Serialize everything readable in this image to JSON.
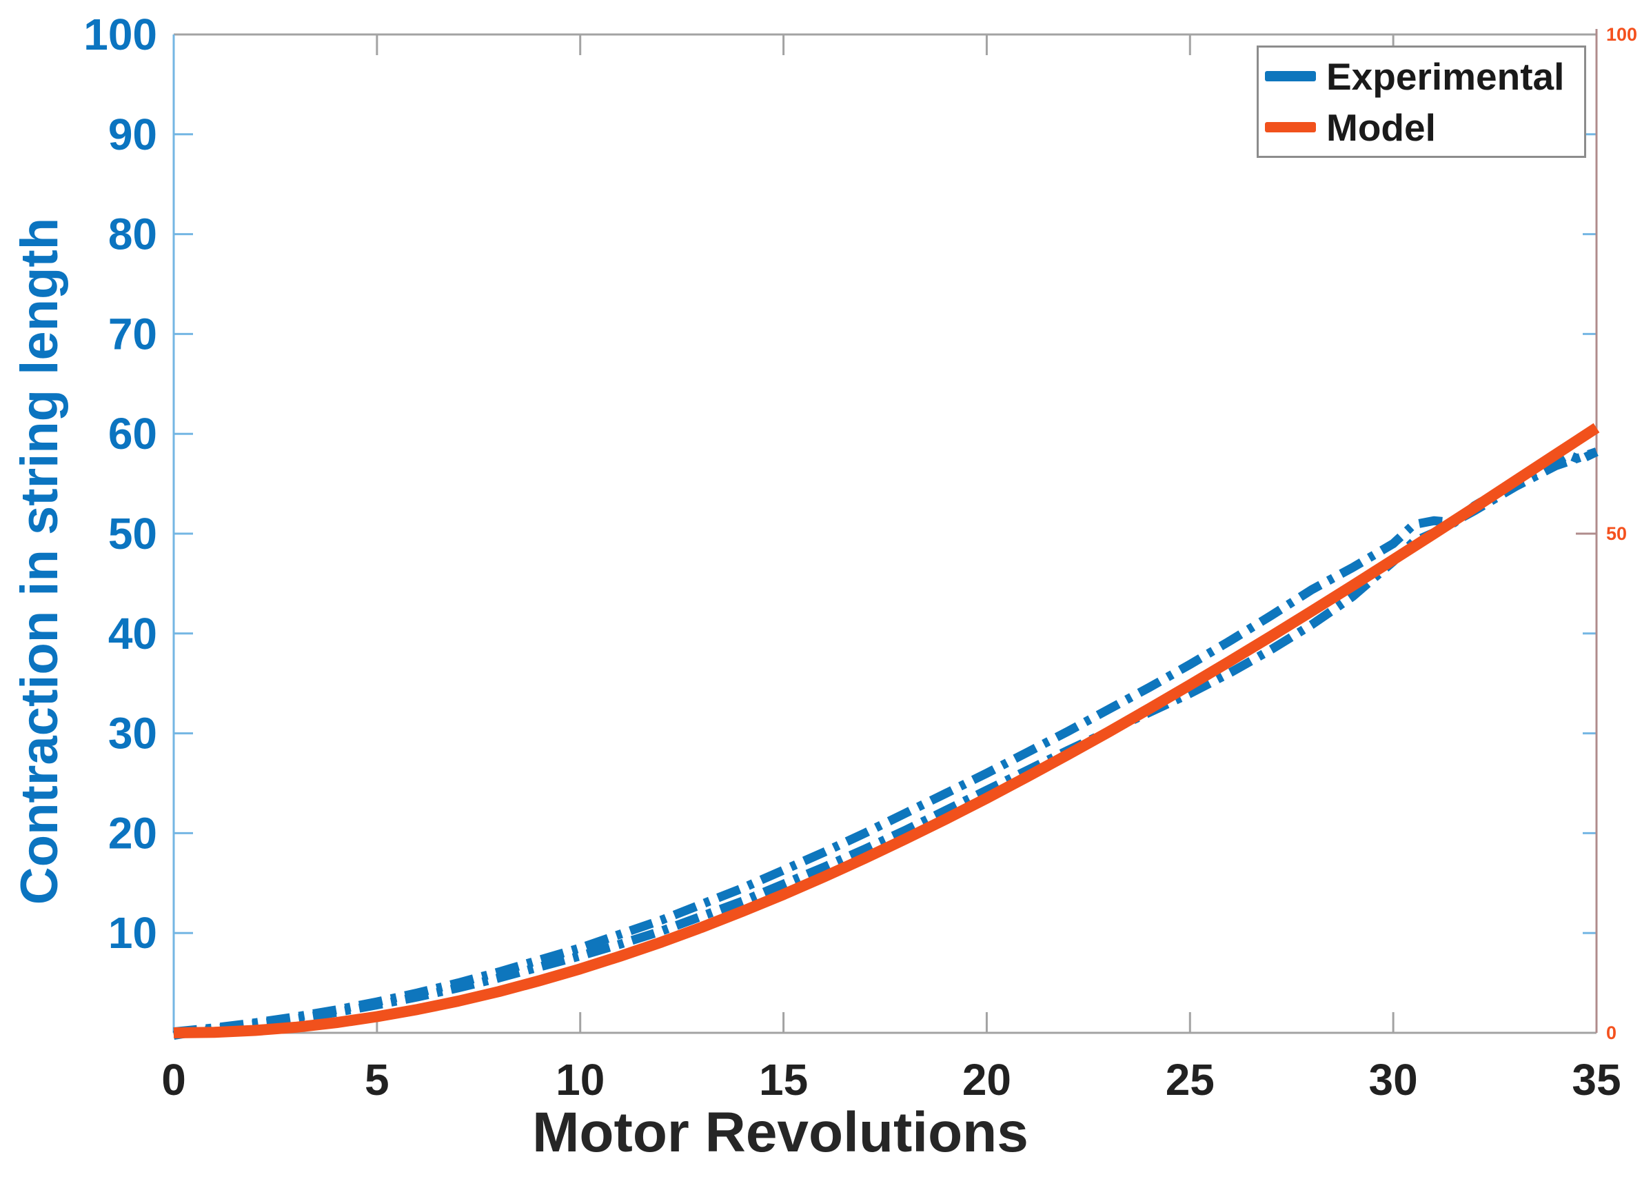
{
  "figure": {
    "background": "#FFFFFF"
  },
  "legend": {
    "position": "top-right",
    "items": [
      {
        "label": "Experimental",
        "color": "#0E76BD",
        "style": "dash-dot"
      },
      {
        "label": "Model",
        "color": "#F1511C",
        "style": "solid"
      }
    ]
  },
  "colors": {
    "experimental": "#0E76BD",
    "model": "#F1511C",
    "left_axis": "#74B6E3",
    "left_tick_labels": "#0B74C0",
    "right_axis": "#B08C8C",
    "right_tick_labels": "#F4511E",
    "frame": "#A3A3A3",
    "x_tick_labels": "#212121",
    "x_axis_label": "#262626",
    "legend_border": "#8C8C8C",
    "background": "#FFFFFF"
  },
  "chart_data": {
    "type": "line",
    "title": "",
    "xlabel": "Motor Revolutions",
    "ylabel": "Contraction in string length",
    "xlim": [
      0,
      35
    ],
    "ylim_left": [
      0,
      100
    ],
    "ylim_right": [
      0,
      100
    ],
    "x_ticks": [
      0,
      5,
      10,
      15,
      20,
      25,
      30,
      35
    ],
    "y_ticks_left": [
      10,
      20,
      30,
      40,
      50,
      60,
      70,
      80,
      90,
      100
    ],
    "y_ticks_right": [
      0,
      50,
      100
    ],
    "grid": false,
    "legend_position": "top-right",
    "series": [
      {
        "name": "Experimental (upper trace)",
        "legend": "Experimental",
        "axis": "left",
        "style": "dash-dot",
        "color": "#0E76BD",
        "width": 13,
        "points": [
          [
            0,
            0.1
          ],
          [
            1,
            0.5
          ],
          [
            2,
            1.0
          ],
          [
            3,
            1.6
          ],
          [
            4,
            2.3
          ],
          [
            5,
            3.1
          ],
          [
            6,
            4.0
          ],
          [
            7,
            5.0
          ],
          [
            8,
            6.1
          ],
          [
            9,
            7.3
          ],
          [
            10,
            8.5
          ],
          [
            11,
            9.9
          ],
          [
            12,
            11.3
          ],
          [
            13,
            12.9
          ],
          [
            14,
            14.5
          ],
          [
            15,
            16.3
          ],
          [
            16,
            18.1
          ],
          [
            17,
            20.0
          ],
          [
            18,
            22.0
          ],
          [
            19,
            24.0
          ],
          [
            20,
            26.0
          ],
          [
            21,
            28.1
          ],
          [
            22,
            30.2
          ],
          [
            23,
            32.4
          ],
          [
            24,
            34.6
          ],
          [
            25,
            36.9
          ],
          [
            26,
            39.3
          ],
          [
            27,
            41.8
          ],
          [
            28,
            44.4
          ],
          [
            29,
            46.6
          ],
          [
            30,
            49.0
          ],
          [
            30.5,
            50.9
          ],
          [
            31,
            51.3
          ],
          [
            31.5,
            51.1
          ],
          [
            32,
            52.8
          ],
          [
            33,
            55.2
          ],
          [
            33.5,
            56.2
          ],
          [
            34,
            57.2
          ],
          [
            34.3,
            57.9
          ],
          [
            34.6,
            57.4
          ],
          [
            35,
            58.2
          ]
        ]
      },
      {
        "name": "Experimental (lower trace)",
        "legend": "Experimental",
        "axis": "left",
        "style": "dash-dot",
        "color": "#0E76BD",
        "width": 13,
        "points": [
          [
            0,
            -0.25
          ],
          [
            1,
            0.4
          ],
          [
            2,
            0.85
          ],
          [
            3,
            1.4
          ],
          [
            4,
            2.05
          ],
          [
            5,
            2.8
          ],
          [
            6,
            3.6
          ],
          [
            7,
            4.5
          ],
          [
            8,
            5.5
          ],
          [
            9,
            6.6
          ],
          [
            10,
            7.7
          ],
          [
            11,
            8.9
          ],
          [
            12,
            10.2
          ],
          [
            13,
            11.7
          ],
          [
            14,
            13.2
          ],
          [
            15,
            14.9
          ],
          [
            16,
            16.6
          ],
          [
            17,
            18.4
          ],
          [
            18,
            20.3
          ],
          [
            19,
            22.3
          ],
          [
            20,
            24.3
          ],
          [
            21,
            26.3
          ],
          [
            22,
            28.3
          ],
          [
            23,
            30.2
          ],
          [
            24,
            32.1
          ],
          [
            25,
            34.0
          ],
          [
            26,
            36.1
          ],
          [
            27,
            38.4
          ],
          [
            28,
            40.9
          ],
          [
            29,
            43.7
          ],
          [
            30,
            47.2
          ],
          [
            30.5,
            49.2
          ],
          [
            31,
            50.1
          ],
          [
            32,
            52.3
          ],
          [
            33,
            54.7
          ],
          [
            34,
            56.8
          ],
          [
            35,
            58.2
          ]
        ]
      },
      {
        "name": "Model",
        "legend": "Model",
        "axis": "right",
        "style": "solid",
        "color": "#F1511C",
        "width": 16,
        "points": [
          [
            0,
            0
          ],
          [
            1,
            0.05
          ],
          [
            2,
            0.24
          ],
          [
            3,
            0.56
          ],
          [
            4,
            1.02
          ],
          [
            5,
            1.62
          ],
          [
            6,
            2.34
          ],
          [
            7,
            3.18
          ],
          [
            8,
            4.14
          ],
          [
            9,
            5.22
          ],
          [
            10,
            6.4
          ],
          [
            11,
            7.7
          ],
          [
            12,
            9.09
          ],
          [
            13,
            10.59
          ],
          [
            14,
            12.18
          ],
          [
            15,
            13.86
          ],
          [
            16,
            15.63
          ],
          [
            17,
            17.48
          ],
          [
            18,
            19.42
          ],
          [
            19,
            21.42
          ],
          [
            20,
            23.5
          ],
          [
            21,
            25.66
          ],
          [
            22,
            27.87
          ],
          [
            23,
            30.14
          ],
          [
            24,
            32.47
          ],
          [
            25,
            34.85
          ],
          [
            26,
            37.27
          ],
          [
            27,
            39.74
          ],
          [
            28,
            42.25
          ],
          [
            29,
            44.8
          ],
          [
            30,
            47.38
          ],
          [
            31,
            49.99
          ],
          [
            32,
            52.62
          ],
          [
            33,
            55.28
          ],
          [
            34,
            57.94
          ],
          [
            35,
            60.6
          ]
        ]
      }
    ]
  }
}
